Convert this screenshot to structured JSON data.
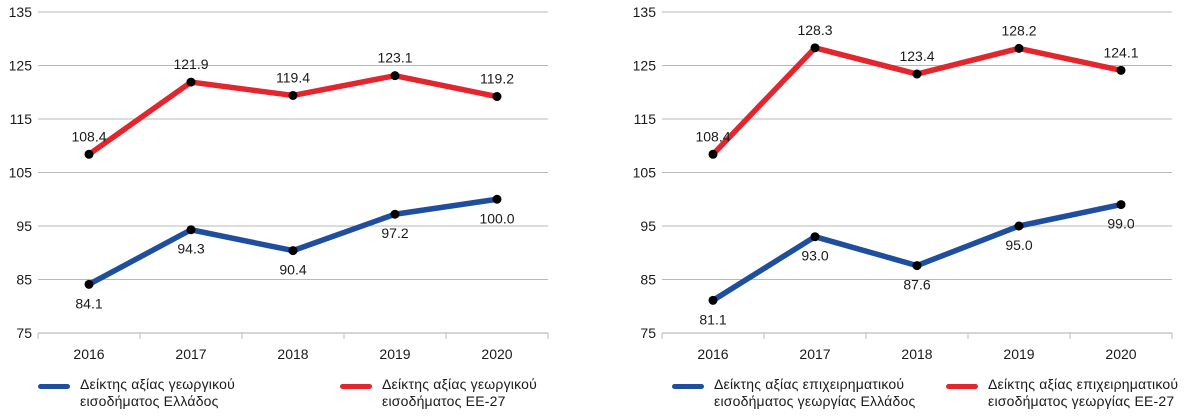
{
  "colors": {
    "greece": "#1f4e9e",
    "eu27": "#e3262d",
    "grid": "#b8b8b8",
    "axis": "#bdbdbd",
    "text": "#1a1a1a",
    "marker": "#000000"
  },
  "chart_data": [
    {
      "type": "line",
      "title": "",
      "xlabel": "",
      "ylabel": "",
      "categories": [
        "2016",
        "2017",
        "2018",
        "2019",
        "2020"
      ],
      "ylim": [
        75,
        135
      ],
      "yticks": [
        75,
        85,
        95,
        105,
        115,
        125,
        135
      ],
      "grid": true,
      "legend_position": "bottom",
      "series": [
        {
          "name": "Δείκτης αξίας γεωργικού εισοδήματος Ελλάδος",
          "legend_lines": [
            "Δείκτης αξίας γεωργικού",
            "εισοδήματος Ελλάδος"
          ],
          "color": "#1f4e9e",
          "values": [
            84.1,
            94.3,
            90.4,
            97.2,
            100.0
          ],
          "labels": [
            "84.1",
            "94.3",
            "90.4",
            "97.2",
            "100.0"
          ],
          "label_position": "below"
        },
        {
          "name": "Δείκτης αξίας γεωργικού εισοδήματος ΕΕ-27",
          "legend_lines": [
            "Δείκτης αξίας γεωργικού",
            "εισοδήματος ΕΕ-27"
          ],
          "color": "#e3262d",
          "values": [
            108.4,
            121.9,
            119.4,
            123.1,
            119.2
          ],
          "labels": [
            "108.4",
            "121.9",
            "119.4",
            "123.1",
            "119.2"
          ],
          "label_position": "above"
        }
      ]
    },
    {
      "type": "line",
      "title": "",
      "xlabel": "",
      "ylabel": "",
      "categories": [
        "2016",
        "2017",
        "2018",
        "2019",
        "2020"
      ],
      "ylim": [
        75,
        135
      ],
      "yticks": [
        75,
        85,
        95,
        105,
        115,
        125,
        135
      ],
      "grid": true,
      "legend_position": "bottom",
      "series": [
        {
          "name": "Δείκτης αξίας επιχειρηματικού εισοδήματος γεωργίας Ελλάδος",
          "legend_lines": [
            "Δείκτης αξίας επιχειρηματικού",
            "εισοδήματος γεωργίας Ελλάδος"
          ],
          "color": "#1f4e9e",
          "values": [
            81.1,
            93.0,
            87.6,
            95.0,
            99.0
          ],
          "labels": [
            "81.1",
            "93.0",
            "87.6",
            "95.0",
            "99.0"
          ],
          "label_position": "below"
        },
        {
          "name": "Δείκτης αξίας επιχειρηματικού εισοδήματος γεωργίας ΕΕ-27",
          "legend_lines": [
            "Δείκτης αξίας επιχειρηματικού",
            "εισοδήματος γεωργίας ΕΕ-27"
          ],
          "color": "#e3262d",
          "values": [
            108.4,
            128.3,
            123.4,
            128.2,
            124.1
          ],
          "labels": [
            "108.4",
            "128.3",
            "123.4",
            "128.2",
            "124.1"
          ],
          "label_position": "above"
        }
      ]
    }
  ]
}
